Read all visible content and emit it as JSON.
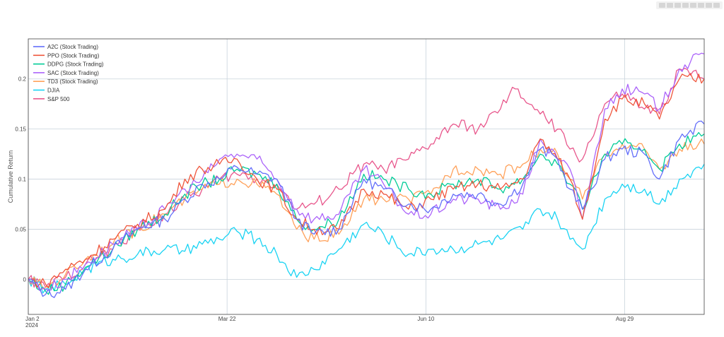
{
  "toolbar": {
    "icons": [
      "camera-icon",
      "zoom-icon",
      "pan-icon",
      "zoom-in-icon",
      "zoom-out-icon",
      "autoscale-icon",
      "reset-icon",
      "plotly-logo-icon"
    ]
  },
  "chart_data": {
    "type": "line",
    "title": "",
    "ylabel": "Cumulative Return",
    "xlabel": "",
    "x_tick_labels": [
      "Jan 2\n2024",
      "Mar 22",
      "Jun 10",
      "Aug 29"
    ],
    "y_tick_labels": [
      "0",
      "0.05",
      "0.1",
      "0.15",
      "0.2"
    ],
    "xlim": [
      "2024-01-02",
      "2024-09-30"
    ],
    "ylim": [
      -0.035,
      0.24
    ],
    "grid": true,
    "legend_position": "top-left",
    "series": [
      {
        "name": "A2C (Stock Trading)",
        "color": "#636efa",
        "points": [
          [
            "2024-01-02",
            0
          ],
          [
            "2024-01-09",
            -0.015
          ],
          [
            "2024-01-17",
            -0.01
          ],
          [
            "2024-01-25",
            0.01
          ],
          [
            "2024-02-05",
            0.03
          ],
          [
            "2024-02-15",
            0.05
          ],
          [
            "2024-02-26",
            0.06
          ],
          [
            "2024-03-05",
            0.08
          ],
          [
            "2024-03-12",
            0.095
          ],
          [
            "2024-03-19",
            0.1
          ],
          [
            "2024-03-26",
            0.112
          ],
          [
            "2024-04-03",
            0.105
          ],
          [
            "2024-04-11",
            0.1
          ],
          [
            "2024-04-19",
            0.06
          ],
          [
            "2024-04-26",
            0.045
          ],
          [
            "2024-05-06",
            0.05
          ],
          [
            "2024-05-16",
            0.1
          ],
          [
            "2024-05-24",
            0.09
          ],
          [
            "2024-06-03",
            0.075
          ],
          [
            "2024-06-12",
            0.07
          ],
          [
            "2024-06-21",
            0.085
          ],
          [
            "2024-07-01",
            0.085
          ],
          [
            "2024-07-10",
            0.075
          ],
          [
            "2024-07-19",
            0.095
          ],
          [
            "2024-07-26",
            0.13
          ],
          [
            "2024-08-02",
            0.12
          ],
          [
            "2024-08-07",
            0.09
          ],
          [
            "2024-08-12",
            0.07
          ],
          [
            "2024-08-21",
            0.12
          ],
          [
            "2024-08-28",
            0.13
          ],
          [
            "2024-09-06",
            0.125
          ],
          [
            "2024-09-12",
            0.1
          ],
          [
            "2024-09-20",
            0.14
          ],
          [
            "2024-09-30",
            0.155
          ]
        ]
      },
      {
        "name": "PPO (Stock Trading)",
        "color": "#ef553b",
        "points": [
          [
            "2024-01-02",
            0
          ],
          [
            "2024-01-09",
            -0.005
          ],
          [
            "2024-01-17",
            0.01
          ],
          [
            "2024-01-25",
            0.02
          ],
          [
            "2024-02-05",
            0.04
          ],
          [
            "2024-02-15",
            0.055
          ],
          [
            "2024-02-26",
            0.07
          ],
          [
            "2024-03-05",
            0.1
          ],
          [
            "2024-03-12",
            0.11
          ],
          [
            "2024-03-19",
            0.115
          ],
          [
            "2024-03-26",
            0.12
          ],
          [
            "2024-04-03",
            0.1
          ],
          [
            "2024-04-11",
            0.09
          ],
          [
            "2024-04-19",
            0.06
          ],
          [
            "2024-04-26",
            0.05
          ],
          [
            "2024-05-06",
            0.05
          ],
          [
            "2024-05-16",
            0.09
          ],
          [
            "2024-05-24",
            0.085
          ],
          [
            "2024-06-03",
            0.07
          ],
          [
            "2024-06-12",
            0.08
          ],
          [
            "2024-06-21",
            0.09
          ],
          [
            "2024-07-01",
            0.095
          ],
          [
            "2024-07-10",
            0.09
          ],
          [
            "2024-07-19",
            0.1
          ],
          [
            "2024-07-26",
            0.14
          ],
          [
            "2024-08-02",
            0.12
          ],
          [
            "2024-08-07",
            0.1
          ],
          [
            "2024-08-12",
            0.06
          ],
          [
            "2024-08-21",
            0.16
          ],
          [
            "2024-08-28",
            0.18
          ],
          [
            "2024-09-06",
            0.175
          ],
          [
            "2024-09-12",
            0.16
          ],
          [
            "2024-09-20",
            0.2
          ],
          [
            "2024-09-30",
            0.2
          ]
        ]
      },
      {
        "name": "DDPG (Stock Trading)",
        "color": "#00cc96",
        "points": [
          [
            "2024-01-02",
            0
          ],
          [
            "2024-01-09",
            -0.012
          ],
          [
            "2024-01-17",
            -0.005
          ],
          [
            "2024-01-25",
            0.012
          ],
          [
            "2024-02-05",
            0.03
          ],
          [
            "2024-02-15",
            0.05
          ],
          [
            "2024-02-26",
            0.065
          ],
          [
            "2024-03-05",
            0.085
          ],
          [
            "2024-03-12",
            0.095
          ],
          [
            "2024-03-19",
            0.1
          ],
          [
            "2024-03-26",
            0.11
          ],
          [
            "2024-04-03",
            0.105
          ],
          [
            "2024-04-11",
            0.095
          ],
          [
            "2024-04-19",
            0.06
          ],
          [
            "2024-04-26",
            0.05
          ],
          [
            "2024-05-06",
            0.06
          ],
          [
            "2024-05-16",
            0.105
          ],
          [
            "2024-05-24",
            0.1
          ],
          [
            "2024-06-03",
            0.09
          ],
          [
            "2024-06-12",
            0.085
          ],
          [
            "2024-06-21",
            0.095
          ],
          [
            "2024-07-01",
            0.1
          ],
          [
            "2024-07-10",
            0.09
          ],
          [
            "2024-07-19",
            0.1
          ],
          [
            "2024-07-26",
            0.125
          ],
          [
            "2024-08-02",
            0.115
          ],
          [
            "2024-08-07",
            0.095
          ],
          [
            "2024-08-12",
            0.07
          ],
          [
            "2024-08-21",
            0.125
          ],
          [
            "2024-08-28",
            0.135
          ],
          [
            "2024-09-06",
            0.13
          ],
          [
            "2024-09-12",
            0.11
          ],
          [
            "2024-09-20",
            0.135
          ],
          [
            "2024-09-30",
            0.145
          ]
        ]
      },
      {
        "name": "SAC (Stock Trading)",
        "color": "#ab63fa",
        "points": [
          [
            "2024-01-02",
            0
          ],
          [
            "2024-01-09",
            -0.01
          ],
          [
            "2024-01-17",
            0
          ],
          [
            "2024-01-25",
            0.015
          ],
          [
            "2024-02-05",
            0.035
          ],
          [
            "2024-02-15",
            0.05
          ],
          [
            "2024-02-26",
            0.07
          ],
          [
            "2024-03-05",
            0.09
          ],
          [
            "2024-03-12",
            0.1
          ],
          [
            "2024-03-19",
            0.12
          ],
          [
            "2024-03-26",
            0.125
          ],
          [
            "2024-04-03",
            0.12
          ],
          [
            "2024-04-11",
            0.1
          ],
          [
            "2024-04-19",
            0.07
          ],
          [
            "2024-04-26",
            0.06
          ],
          [
            "2024-05-06",
            0.065
          ],
          [
            "2024-05-16",
            0.11
          ],
          [
            "2024-05-24",
            0.095
          ],
          [
            "2024-06-03",
            0.065
          ],
          [
            "2024-06-12",
            0.065
          ],
          [
            "2024-06-21",
            0.08
          ],
          [
            "2024-07-01",
            0.08
          ],
          [
            "2024-07-10",
            0.07
          ],
          [
            "2024-07-19",
            0.085
          ],
          [
            "2024-07-26",
            0.14
          ],
          [
            "2024-08-02",
            0.12
          ],
          [
            "2024-08-07",
            0.11
          ],
          [
            "2024-08-12",
            0.06
          ],
          [
            "2024-08-21",
            0.17
          ],
          [
            "2024-08-28",
            0.19
          ],
          [
            "2024-09-06",
            0.185
          ],
          [
            "2024-09-12",
            0.17
          ],
          [
            "2024-09-20",
            0.21
          ],
          [
            "2024-09-30",
            0.225
          ]
        ]
      },
      {
        "name": "TD3 (Stock Trading)",
        "color": "#ffa15a",
        "points": [
          [
            "2024-01-02",
            0
          ],
          [
            "2024-01-09",
            -0.008
          ],
          [
            "2024-01-17",
            0.005
          ],
          [
            "2024-01-25",
            0.02
          ],
          [
            "2024-02-05",
            0.035
          ],
          [
            "2024-02-15",
            0.05
          ],
          [
            "2024-02-26",
            0.065
          ],
          [
            "2024-03-05",
            0.08
          ],
          [
            "2024-03-12",
            0.09
          ],
          [
            "2024-03-19",
            0.095
          ],
          [
            "2024-03-26",
            0.1
          ],
          [
            "2024-04-03",
            0.095
          ],
          [
            "2024-04-11",
            0.085
          ],
          [
            "2024-04-19",
            0.05
          ],
          [
            "2024-04-26",
            0.04
          ],
          [
            "2024-05-06",
            0.045
          ],
          [
            "2024-05-16",
            0.08
          ],
          [
            "2024-05-24",
            0.08
          ],
          [
            "2024-06-03",
            0.08
          ],
          [
            "2024-06-12",
            0.085
          ],
          [
            "2024-06-21",
            0.11
          ],
          [
            "2024-07-01",
            0.11
          ],
          [
            "2024-07-10",
            0.105
          ],
          [
            "2024-07-19",
            0.115
          ],
          [
            "2024-07-26",
            0.13
          ],
          [
            "2024-08-02",
            0.125
          ],
          [
            "2024-08-07",
            0.1
          ],
          [
            "2024-08-12",
            0.08
          ],
          [
            "2024-08-21",
            0.125
          ],
          [
            "2024-08-28",
            0.135
          ],
          [
            "2024-09-06",
            0.13
          ],
          [
            "2024-09-12",
            0.11
          ],
          [
            "2024-09-20",
            0.13
          ],
          [
            "2024-09-30",
            0.135
          ]
        ]
      },
      {
        "name": "DJIA",
        "color": "#19d3f3",
        "points": [
          [
            "2024-01-02",
            0
          ],
          [
            "2024-01-09",
            -0.01
          ],
          [
            "2024-01-17",
            -0.005
          ],
          [
            "2024-01-25",
            0.01
          ],
          [
            "2024-02-05",
            0.02
          ],
          [
            "2024-02-15",
            0.025
          ],
          [
            "2024-02-26",
            0.03
          ],
          [
            "2024-03-05",
            0.028
          ],
          [
            "2024-03-12",
            0.035
          ],
          [
            "2024-03-19",
            0.04
          ],
          [
            "2024-03-26",
            0.048
          ],
          [
            "2024-04-03",
            0.04
          ],
          [
            "2024-04-11",
            0.025
          ],
          [
            "2024-04-19",
            0.002
          ],
          [
            "2024-04-26",
            0.01
          ],
          [
            "2024-05-06",
            0.03
          ],
          [
            "2024-05-16",
            0.055
          ],
          [
            "2024-05-24",
            0.045
          ],
          [
            "2024-06-03",
            0.025
          ],
          [
            "2024-06-12",
            0.03
          ],
          [
            "2024-06-21",
            0.03
          ],
          [
            "2024-07-01",
            0.035
          ],
          [
            "2024-07-10",
            0.04
          ],
          [
            "2024-07-19",
            0.05
          ],
          [
            "2024-07-26",
            0.07
          ],
          [
            "2024-08-02",
            0.06
          ],
          [
            "2024-08-07",
            0.04
          ],
          [
            "2024-08-12",
            0.03
          ],
          [
            "2024-08-21",
            0.08
          ],
          [
            "2024-08-28",
            0.095
          ],
          [
            "2024-09-06",
            0.09
          ],
          [
            "2024-09-12",
            0.075
          ],
          [
            "2024-09-20",
            0.1
          ],
          [
            "2024-09-30",
            0.115
          ]
        ]
      },
      {
        "name": "S&P 500",
        "color": "#e8578c",
        "points": [
          [
            "2024-01-02",
            0
          ],
          [
            "2024-01-09",
            -0.008
          ],
          [
            "2024-01-17",
            0.002
          ],
          [
            "2024-01-25",
            0.015
          ],
          [
            "2024-02-05",
            0.03
          ],
          [
            "2024-02-15",
            0.05
          ],
          [
            "2024-02-26",
            0.065
          ],
          [
            "2024-03-05",
            0.08
          ],
          [
            "2024-03-12",
            0.09
          ],
          [
            "2024-03-19",
            0.1
          ],
          [
            "2024-03-26",
            0.105
          ],
          [
            "2024-04-03",
            0.1
          ],
          [
            "2024-04-11",
            0.095
          ],
          [
            "2024-04-19",
            0.07
          ],
          [
            "2024-04-26",
            0.075
          ],
          [
            "2024-05-06",
            0.09
          ],
          [
            "2024-05-16",
            0.115
          ],
          [
            "2024-05-24",
            0.11
          ],
          [
            "2024-06-03",
            0.12
          ],
          [
            "2024-06-12",
            0.135
          ],
          [
            "2024-06-21",
            0.155
          ],
          [
            "2024-07-01",
            0.15
          ],
          [
            "2024-07-10",
            0.17
          ],
          [
            "2024-07-16",
            0.19
          ],
          [
            "2024-07-26",
            0.165
          ],
          [
            "2024-08-02",
            0.15
          ],
          [
            "2024-08-07",
            0.13
          ],
          [
            "2024-08-12",
            0.12
          ],
          [
            "2024-08-21",
            0.175
          ],
          [
            "2024-08-28",
            0.185
          ],
          [
            "2024-09-06",
            0.17
          ],
          [
            "2024-09-12",
            0.165
          ],
          [
            "2024-09-20",
            0.21
          ],
          [
            "2024-09-30",
            0.2
          ]
        ]
      }
    ]
  }
}
